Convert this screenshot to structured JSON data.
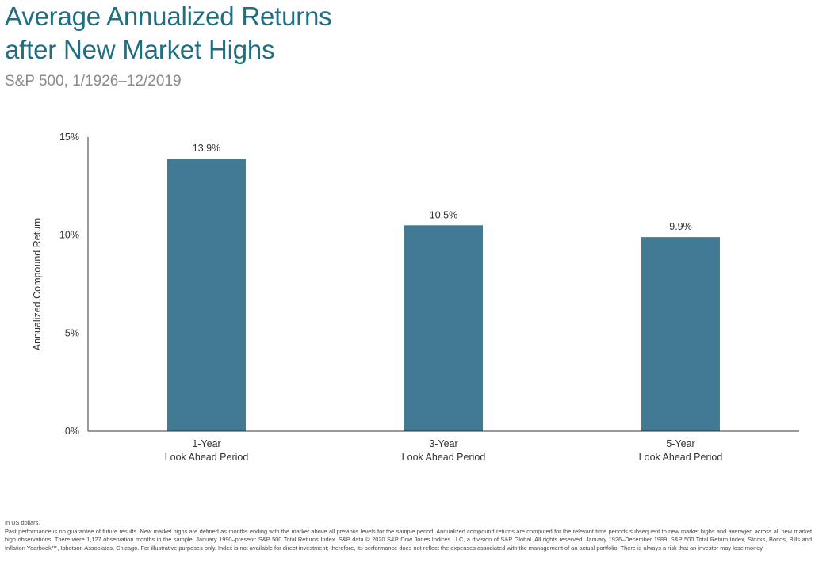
{
  "title_lines": [
    "Average Annualized Returns",
    "after New Market Highs"
  ],
  "subtitle": "S&P 500, 1/1926–12/2019",
  "colors": {
    "title": "#1f6f82",
    "bar": "#437a93",
    "axis": "#333333",
    "subtitle": "#8a8a8a"
  },
  "chart_data": {
    "type": "bar",
    "categories": [
      [
        "1-Year",
        "Look Ahead Period"
      ],
      [
        "3-Year",
        "Look Ahead Period"
      ],
      [
        "5-Year",
        "Look Ahead Period"
      ]
    ],
    "values": [
      13.9,
      10.5,
      9.9
    ],
    "data_labels": [
      "13.9%",
      "10.5%",
      "9.9%"
    ],
    "yticks": [
      0,
      5,
      10,
      15
    ],
    "ytick_labels": [
      "0%",
      "5%",
      "10%",
      "15%"
    ],
    "ylim": [
      0,
      15
    ],
    "ylabel": "Annualized Compound Return",
    "xlabel": "",
    "grid": false,
    "legend": "none"
  },
  "footnotes": {
    "line1": "In US dollars.",
    "body": "Past performance is no guarantee of future results. New market highs are defined as months ending with the market above all previous levels for the sample period. Annualized compound returns are computed for the relevant time periods subsequent to new market highs and averaged across all new market high observations. There were 1,127 observation months in the sample. January 1990–present: S&P 500 Total Returns Index. S&P data © 2020 S&P Dow Jones Indices LLC, a division of S&P Global. All rights reserved. January 1926–December 1989; S&P 500 Total Return Index, Stocks, Bonds, Bills and Inflation Yearbook™, Ibbotson Associates, Chicago. For illustrative purposes only. Index is not available for direct investment; therefore, its performance does not reflect the expenses associated with the management of an actual portfolio. There is always a risk that an investor may lose money."
  }
}
